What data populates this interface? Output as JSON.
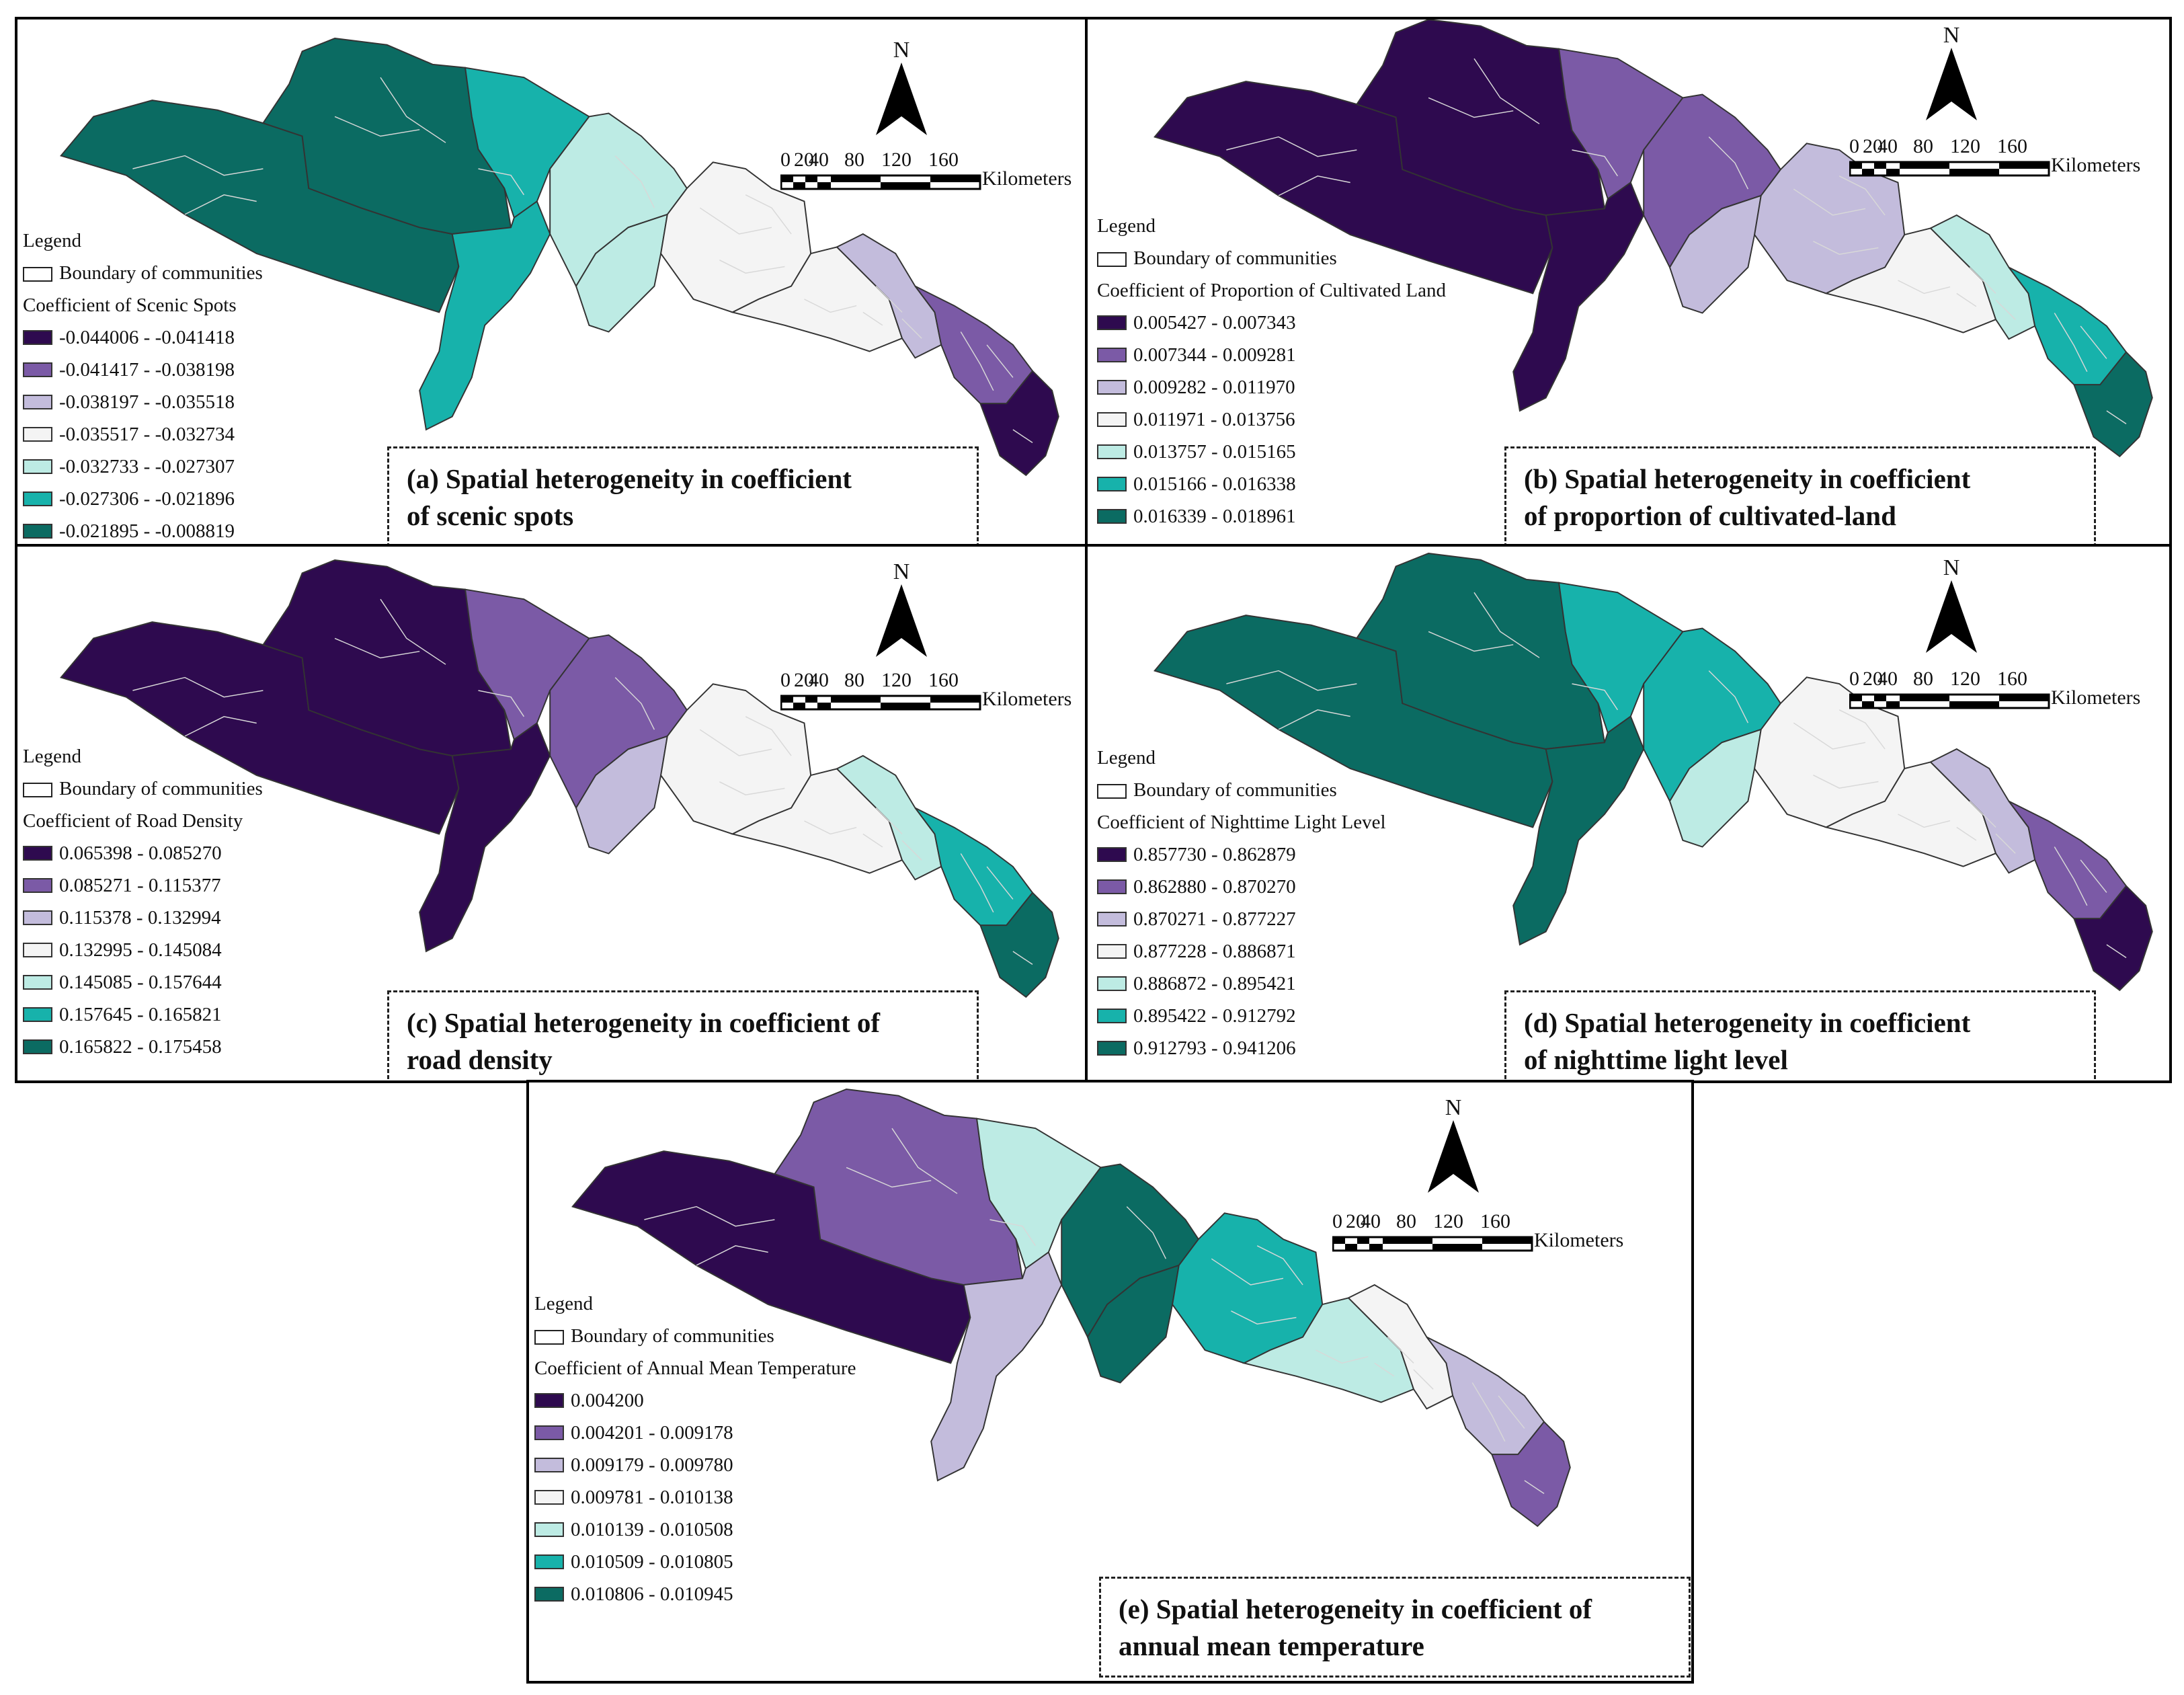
{
  "colors": {
    "c1": "#2e0a4f",
    "c2": "#7b5aa6",
    "c3": "#c3bcdc",
    "c4": "#f4f4f4",
    "c5": "#bdebe4",
    "c6": "#17b2ab",
    "c7": "#0b6b62",
    "boundary": "#d8d8d8",
    "outline": "#333333"
  },
  "common": {
    "north_label": "N",
    "scale_ticks": [
      "0",
      "20",
      "40",
      "80",
      "120",
      "160"
    ],
    "scale_unit": "Kilometers",
    "legend_title": "Legend",
    "boundary_label": "Boundary of communities"
  },
  "panels": [
    {
      "id": "a",
      "legend_heading": "Coefficient  of Scenic Spots",
      "classes": [
        "-0.044006 - -0.041418",
        "-0.041417 - -0.038198",
        "-0.038197 - -0.035518",
        "-0.035517 - -0.032734",
        "-0.032733 - -0.027307",
        "-0.027306 - -0.021896",
        "-0.021895 - -0.008819"
      ],
      "caption_line1": "(a) Spatial heterogeneity in coefficient",
      "caption_line2": "of scenic spots",
      "region_classes": [
        7,
        7,
        6,
        6,
        5,
        5,
        4,
        4,
        3,
        2,
        1
      ]
    },
    {
      "id": "b",
      "legend_heading": "Coefficient of Proportion of Cultivated Land",
      "classes": [
        "0.005427 - 0.007343",
        "0.007344 - 0.009281",
        "0.009282 - 0.011970",
        "0.011971 - 0.013756",
        "0.013757 - 0.015165",
        "0.015166 - 0.016338",
        "0.016339 - 0.018961"
      ],
      "caption_line1": "(b) Spatial heterogeneity in coefficient",
      "caption_line2": "of proportion of cultivated-land",
      "region_classes": [
        1,
        1,
        2,
        1,
        2,
        3,
        3,
        4,
        5,
        6,
        7
      ]
    },
    {
      "id": "c",
      "legend_heading": "Coefficient of Road Density",
      "classes": [
        "0.065398 - 0.085270",
        "0.085271 - 0.115377",
        "0.115378 - 0.132994",
        "0.132995 - 0.145084",
        "0.145085 - 0.157644",
        "0.157645 - 0.165821",
        "0.165822 - 0.175458"
      ],
      "caption_line1": "(c) Spatial heterogeneity in coefficient of",
      "caption_line2": "road density",
      "region_classes": [
        1,
        1,
        2,
        1,
        2,
        3,
        4,
        4,
        5,
        6,
        7
      ]
    },
    {
      "id": "d",
      "legend_heading": "Coefficient of Nighttime Light Level",
      "classes": [
        "0.857730 - 0.862879",
        "0.862880 - 0.870270",
        "0.870271 - 0.877227",
        "0.877228 - 0.886871",
        "0.886872 - 0.895421",
        "0.895422 - 0.912792",
        "0.912793 - 0.941206"
      ],
      "caption_line1": "(d) Spatial heterogeneity in coefficient",
      "caption_line2": "of nighttime light level",
      "region_classes": [
        7,
        7,
        6,
        7,
        6,
        5,
        4,
        4,
        3,
        2,
        1
      ]
    },
    {
      "id": "e",
      "legend_heading": "Coefficient of Annual Mean Temperature",
      "classes": [
        "0.004200",
        "0.004201 - 0.009178",
        "0.009179 - 0.009780",
        "0.009781 - 0.010138",
        "0.010139 - 0.010508",
        "0.010509 - 0.010805",
        "0.010806 - 0.010945"
      ],
      "caption_line1": "(e) Spatial heterogeneity in coefficient of",
      "caption_line2": "annual mean temperature",
      "region_classes": [
        1,
        2,
        5,
        3,
        7,
        7,
        6,
        5,
        4,
        3,
        2
      ]
    }
  ]
}
